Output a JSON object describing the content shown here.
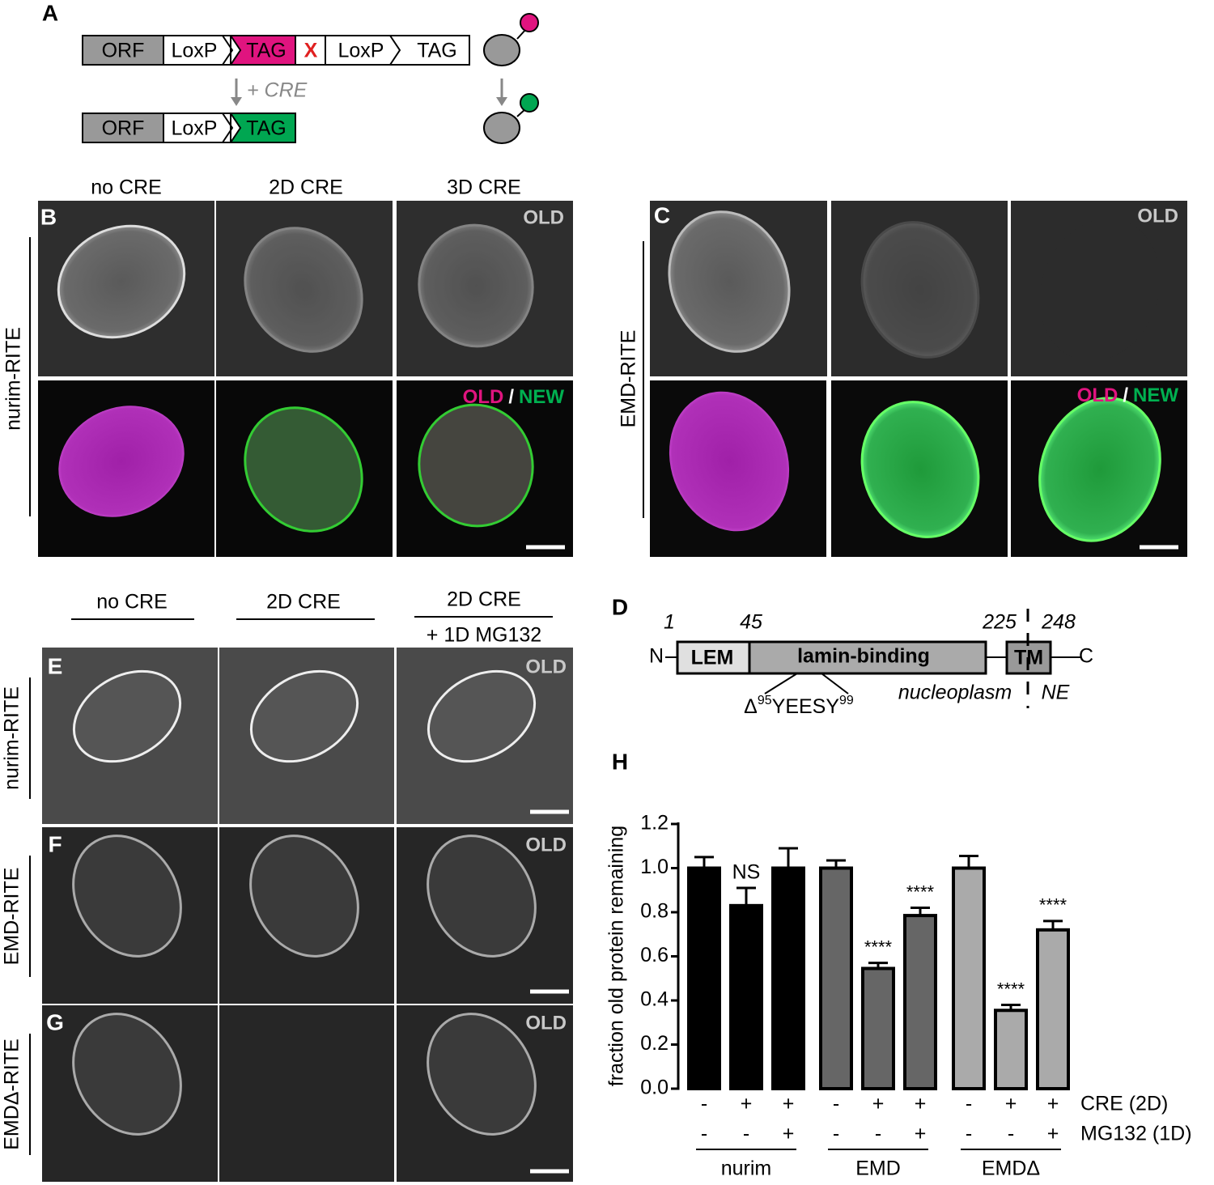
{
  "panel_a": {
    "label": "A",
    "construct_before": [
      "ORF",
      "LoxP",
      "TAG",
      "X",
      "LoxP",
      "TAG"
    ],
    "arrow_label": "+ CRE",
    "construct_after": [
      "ORF",
      "LoxP",
      "TAG"
    ]
  },
  "panel_b": {
    "label": "B",
    "columns": [
      "no CRE",
      "2D CRE",
      "3D CRE"
    ],
    "row_label": "nurim-RITE",
    "channel_old": "OLD",
    "merge": [
      "OLD",
      "/",
      "NEW"
    ]
  },
  "panel_c": {
    "label": "C",
    "row_label": "EMD-RITE",
    "channel_old": "OLD",
    "merge": [
      "OLD",
      "/",
      "NEW"
    ]
  },
  "panel_d": {
    "label": "D",
    "positions": [
      1,
      45,
      225,
      248
    ],
    "n_term": "N",
    "c_term": "C",
    "domains": [
      "LEM",
      "lamin-binding",
      "TM"
    ],
    "deletion": {
      "prefix": "Δ",
      "start": "95",
      "motif": "YEESY",
      "end": "99"
    },
    "regions": [
      "nucleoplasm",
      "NE"
    ]
  },
  "panels_efg": {
    "columns": [
      "no CRE",
      "2D CRE",
      "2D CRE"
    ],
    "column_note": "+ 1D MG132",
    "rows": [
      {
        "label": "E",
        "name": "nurim-RITE",
        "channel": "OLD"
      },
      {
        "label": "F",
        "name": "EMD-RITE",
        "channel": "OLD"
      },
      {
        "label": "G",
        "name": "EMDΔ-RITE",
        "channel": "OLD"
      }
    ]
  },
  "chart_data": {
    "type": "bar",
    "panel_label": "H",
    "ylabel": "fraction old protein remaining",
    "groups": [
      "nurim",
      "EMD",
      "EMDΔ"
    ],
    "colors": [
      "#000000",
      "#666666",
      "#aaaaaa"
    ],
    "values": [
      1.0,
      0.83,
      1.0,
      1.0,
      0.545,
      0.785,
      1.0,
      0.355,
      0.72
    ],
    "errors": [
      0.05,
      0.08,
      0.09,
      0.035,
      0.025,
      0.035,
      0.055,
      0.025,
      0.04
    ],
    "annotations": [
      null,
      "NS",
      null,
      null,
      "****",
      "****",
      null,
      "****",
      "****"
    ],
    "conditions": [
      {
        "name": "CRE (2D)",
        "signs": [
          "-",
          "+",
          "+",
          "-",
          "+",
          "+",
          "-",
          "+",
          "+"
        ]
      },
      {
        "name": "MG132 (1D)",
        "signs": [
          "-",
          "-",
          "+",
          "-",
          "-",
          "+",
          "-",
          "-",
          "+"
        ]
      }
    ],
    "ylim": [
      0,
      1.2
    ],
    "yticks": [
      {
        "value": 0,
        "label": "0.0"
      },
      {
        "value": 0.2,
        "label": "0.2"
      },
      {
        "value": 0.4,
        "label": "0.4"
      },
      {
        "value": 0.6,
        "label": "0.6"
      },
      {
        "value": 0.8,
        "label": "0.8"
      },
      {
        "value": 1,
        "label": "1.0"
      },
      {
        "value": 1.2,
        "label": "1.2"
      }
    ]
  }
}
